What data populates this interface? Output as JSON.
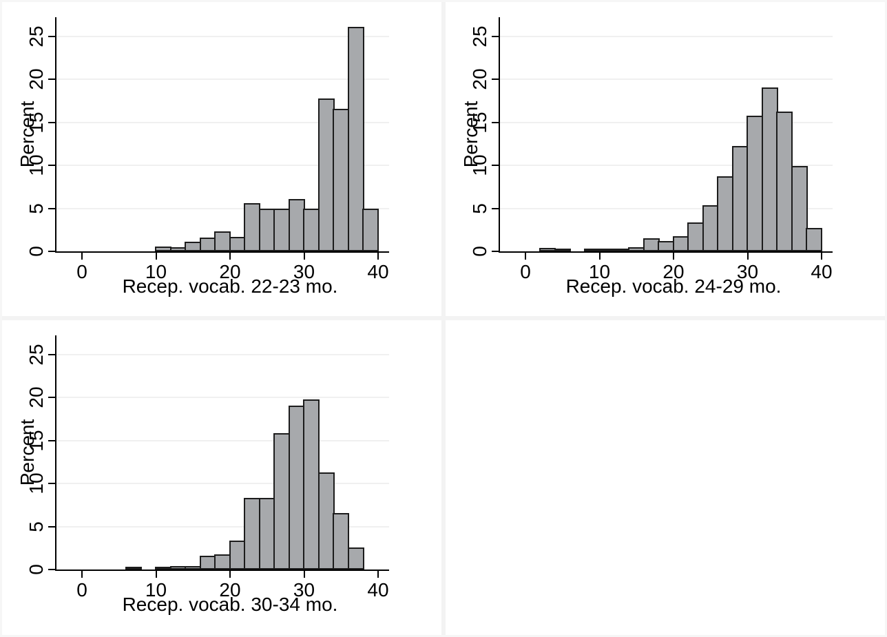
{
  "figure": {
    "background": "#ffffff",
    "frame_color": "#f6f6f6",
    "divider_color": "#f3f3f3",
    "grid_color": "#f0f0f0",
    "axis_color": "#000000",
    "bar_fill": "#a7a9ac",
    "bar_border": "#1c1c1c",
    "text_color": "#000000"
  },
  "chart_data": [
    {
      "type": "bar",
      "subtype": "histogram",
      "title": "",
      "xlabel": "Recep. vocab. 22-23 mo.",
      "ylabel": "Percent",
      "xticks": [
        0,
        10,
        20,
        30,
        40
      ],
      "yticks": [
        0,
        5,
        10,
        15,
        20,
        25
      ],
      "xlim": [
        -3.5,
        41.3
      ],
      "ylim": [
        0,
        27.2
      ],
      "grid": "horizontal",
      "legend": "none",
      "bin_width": 2,
      "bars": [
        {
          "start": 10,
          "percent": 0.45
        },
        {
          "start": 12,
          "percent": 0.4
        },
        {
          "start": 14,
          "percent": 1.0
        },
        {
          "start": 16,
          "percent": 1.5
        },
        {
          "start": 18,
          "percent": 2.2
        },
        {
          "start": 20,
          "percent": 1.6
        },
        {
          "start": 22,
          "percent": 5.5
        },
        {
          "start": 24,
          "percent": 4.9
        },
        {
          "start": 26,
          "percent": 4.9
        },
        {
          "start": 28,
          "percent": 6.0
        },
        {
          "start": 30,
          "percent": 4.9
        },
        {
          "start": 32,
          "percent": 17.7
        },
        {
          "start": 34,
          "percent": 16.5
        },
        {
          "start": 36,
          "percent": 26.0
        },
        {
          "start": 38,
          "percent": 4.9
        }
      ]
    },
    {
      "type": "bar",
      "subtype": "histogram",
      "title": "",
      "xlabel": "Recep. vocab. 24-29 mo.",
      "ylabel": "Percent",
      "xticks": [
        0,
        10,
        20,
        30,
        40
      ],
      "yticks": [
        0,
        5,
        10,
        15,
        20,
        25
      ],
      "xlim": [
        -3.5,
        41.3
      ],
      "ylim": [
        0,
        27.2
      ],
      "grid": "horizontal",
      "legend": "none",
      "bin_width": 2,
      "bars": [
        {
          "start": 2,
          "percent": 0.3
        },
        {
          "start": 4,
          "percent": 0.2
        },
        {
          "start": 8,
          "percent": 0.1
        },
        {
          "start": 10,
          "percent": 0.15
        },
        {
          "start": 12,
          "percent": 0.25
        },
        {
          "start": 14,
          "percent": 0.35
        },
        {
          "start": 16,
          "percent": 1.4
        },
        {
          "start": 18,
          "percent": 1.1
        },
        {
          "start": 20,
          "percent": 1.65
        },
        {
          "start": 22,
          "percent": 3.3
        },
        {
          "start": 24,
          "percent": 5.3
        },
        {
          "start": 26,
          "percent": 8.6
        },
        {
          "start": 28,
          "percent": 12.2
        },
        {
          "start": 30,
          "percent": 15.7
        },
        {
          "start": 32,
          "percent": 19.0
        },
        {
          "start": 34,
          "percent": 16.2
        },
        {
          "start": 36,
          "percent": 9.8
        },
        {
          "start": 38,
          "percent": 2.6
        }
      ]
    },
    {
      "type": "bar",
      "subtype": "histogram",
      "title": "",
      "xlabel": "Recep. vocab. 30-34 mo.",
      "ylabel": "Percent",
      "xticks": [
        0,
        10,
        20,
        30,
        40
      ],
      "yticks": [
        0,
        5,
        10,
        15,
        20,
        25
      ],
      "xlim": [
        -3.5,
        41.3
      ],
      "ylim": [
        0,
        27.2
      ],
      "grid": "horizontal",
      "legend": "none",
      "bin_width": 2,
      "bars": [
        {
          "start": 6,
          "percent": 0.2
        },
        {
          "start": 10,
          "percent": 0.15
        },
        {
          "start": 12,
          "percent": 0.3
        },
        {
          "start": 14,
          "percent": 0.3
        },
        {
          "start": 16,
          "percent": 1.5
        },
        {
          "start": 18,
          "percent": 1.7
        },
        {
          "start": 20,
          "percent": 3.3
        },
        {
          "start": 22,
          "percent": 8.2
        },
        {
          "start": 24,
          "percent": 8.2
        },
        {
          "start": 26,
          "percent": 15.8
        },
        {
          "start": 28,
          "percent": 19.0
        },
        {
          "start": 30,
          "percent": 19.7
        },
        {
          "start": 32,
          "percent": 11.2
        },
        {
          "start": 34,
          "percent": 6.5
        },
        {
          "start": 36,
          "percent": 2.5
        }
      ]
    }
  ]
}
